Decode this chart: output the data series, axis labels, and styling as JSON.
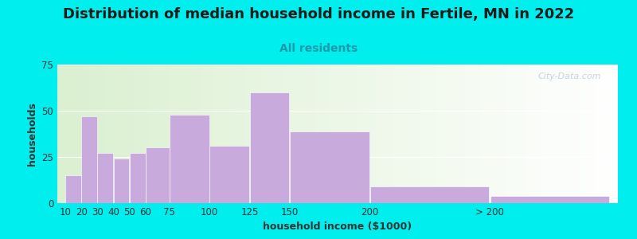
{
  "title": "Distribution of median household income in Fertile, MN in 2022",
  "subtitle": "All residents",
  "xlabel": "household income ($1000)",
  "ylabel": "households",
  "background_outer": "#00EEEE",
  "bg_color_left": "#daf0d0",
  "bg_color_right": "#ffffff",
  "bar_color": "#C8AADC",
  "watermark": "City-Data.com",
  "ylim": [
    0,
    75
  ],
  "yticks": [
    0,
    25,
    50,
    75
  ],
  "bar_lefts": [
    10,
    20,
    30,
    40,
    50,
    60,
    75,
    100,
    125,
    150,
    200,
    275
  ],
  "bar_widths": [
    10,
    10,
    10,
    10,
    10,
    15,
    25,
    25,
    25,
    50,
    75,
    75
  ],
  "bar_heights": [
    15,
    47,
    27,
    24,
    27,
    30,
    48,
    31,
    60,
    39,
    9,
    4
  ],
  "xtick_labels": [
    "10",
    "20",
    "30",
    "40",
    "50",
    "60",
    "75",
    "100",
    "125",
    "150",
    "200",
    "> 200"
  ],
  "xtick_positions": [
    10,
    20,
    30,
    40,
    50,
    60,
    75,
    100,
    125,
    150,
    200,
    275
  ],
  "xlim": [
    5,
    355
  ],
  "title_fontsize": 13,
  "subtitle_fontsize": 10,
  "axis_label_fontsize": 9,
  "tick_fontsize": 8.5
}
